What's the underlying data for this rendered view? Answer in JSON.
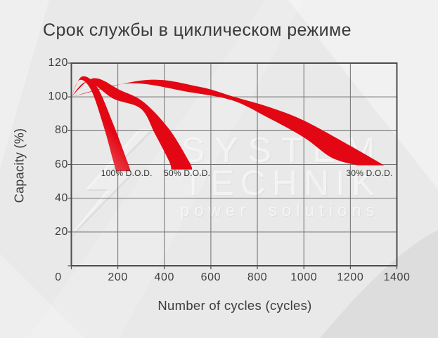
{
  "title": "Срок службы в циклическом режиме",
  "watermark": {
    "line1": "SYSTEM",
    "line2": "TECHNIK",
    "line3": "power solutions"
  },
  "colors": {
    "accent_red": "#e30613",
    "accent_red_light": "#f09090",
    "grid": "#6e6e6e",
    "axis_border": "#4d4d4d",
    "tick_text": "#3f3f3f",
    "background": "#e9e9e9"
  },
  "chart_data": {
    "type": "area",
    "title": "Срок службы в циклическом режиме",
    "xlabel": "Number of cycles (cycles)",
    "ylabel": "Capacity (%)",
    "xlim": [
      0,
      1400
    ],
    "ylim": [
      0,
      120
    ],
    "xticks": [
      0,
      200,
      400,
      600,
      800,
      1000,
      1200,
      1400
    ],
    "yticks": [
      0,
      20,
      40,
      60,
      80,
      100,
      120
    ],
    "grid": true,
    "legend_position": "inline-labels",
    "series": [
      {
        "name": "100% D.O.D.",
        "label_at": {
          "x": 238,
          "y": 55
        },
        "upper_edge": [
          [
            0,
            100
          ],
          [
            45,
            112
          ],
          [
            110,
            106
          ],
          [
            180,
            84
          ],
          [
            240,
            62
          ],
          [
            255,
            56
          ]
        ],
        "lower_edge": [
          [
            0,
            100
          ],
          [
            35,
            110
          ],
          [
            85,
            104
          ],
          [
            140,
            82
          ],
          [
            180,
            62
          ],
          [
            192,
            56
          ]
        ]
      },
      {
        "name": "50% D.O.D.",
        "label_at": {
          "x": 498,
          "y": 55
        },
        "upper_edge": [
          [
            0,
            100
          ],
          [
            95,
            111
          ],
          [
            210,
            104
          ],
          [
            310,
            97
          ],
          [
            420,
            81
          ],
          [
            505,
            62
          ],
          [
            520,
            57
          ]
        ],
        "lower_edge": [
          [
            0,
            100
          ],
          [
            70,
            109
          ],
          [
            180,
            99
          ],
          [
            299,
            93
          ],
          [
            360,
            78
          ],
          [
            420,
            62
          ],
          [
            430,
            57
          ]
        ]
      },
      {
        "name": "30% D.O.D.",
        "label_at": {
          "x": 1282,
          "y": 55
        },
        "upper_edge": [
          [
            0,
            100
          ],
          [
            320,
            110
          ],
          [
            550,
            106
          ],
          [
            700,
            100
          ],
          [
            850,
            94
          ],
          [
            1000,
            86
          ],
          [
            1200,
            71
          ],
          [
            1345,
            59.5
          ]
        ],
        "lower_edge": [
          [
            0,
            100
          ],
          [
            250,
            108
          ],
          [
            500,
            103
          ],
          [
            691,
            98
          ],
          [
            842,
            88
          ],
          [
            1000,
            76
          ],
          [
            1120,
            64
          ],
          [
            1230,
            59.5
          ]
        ]
      }
    ]
  }
}
